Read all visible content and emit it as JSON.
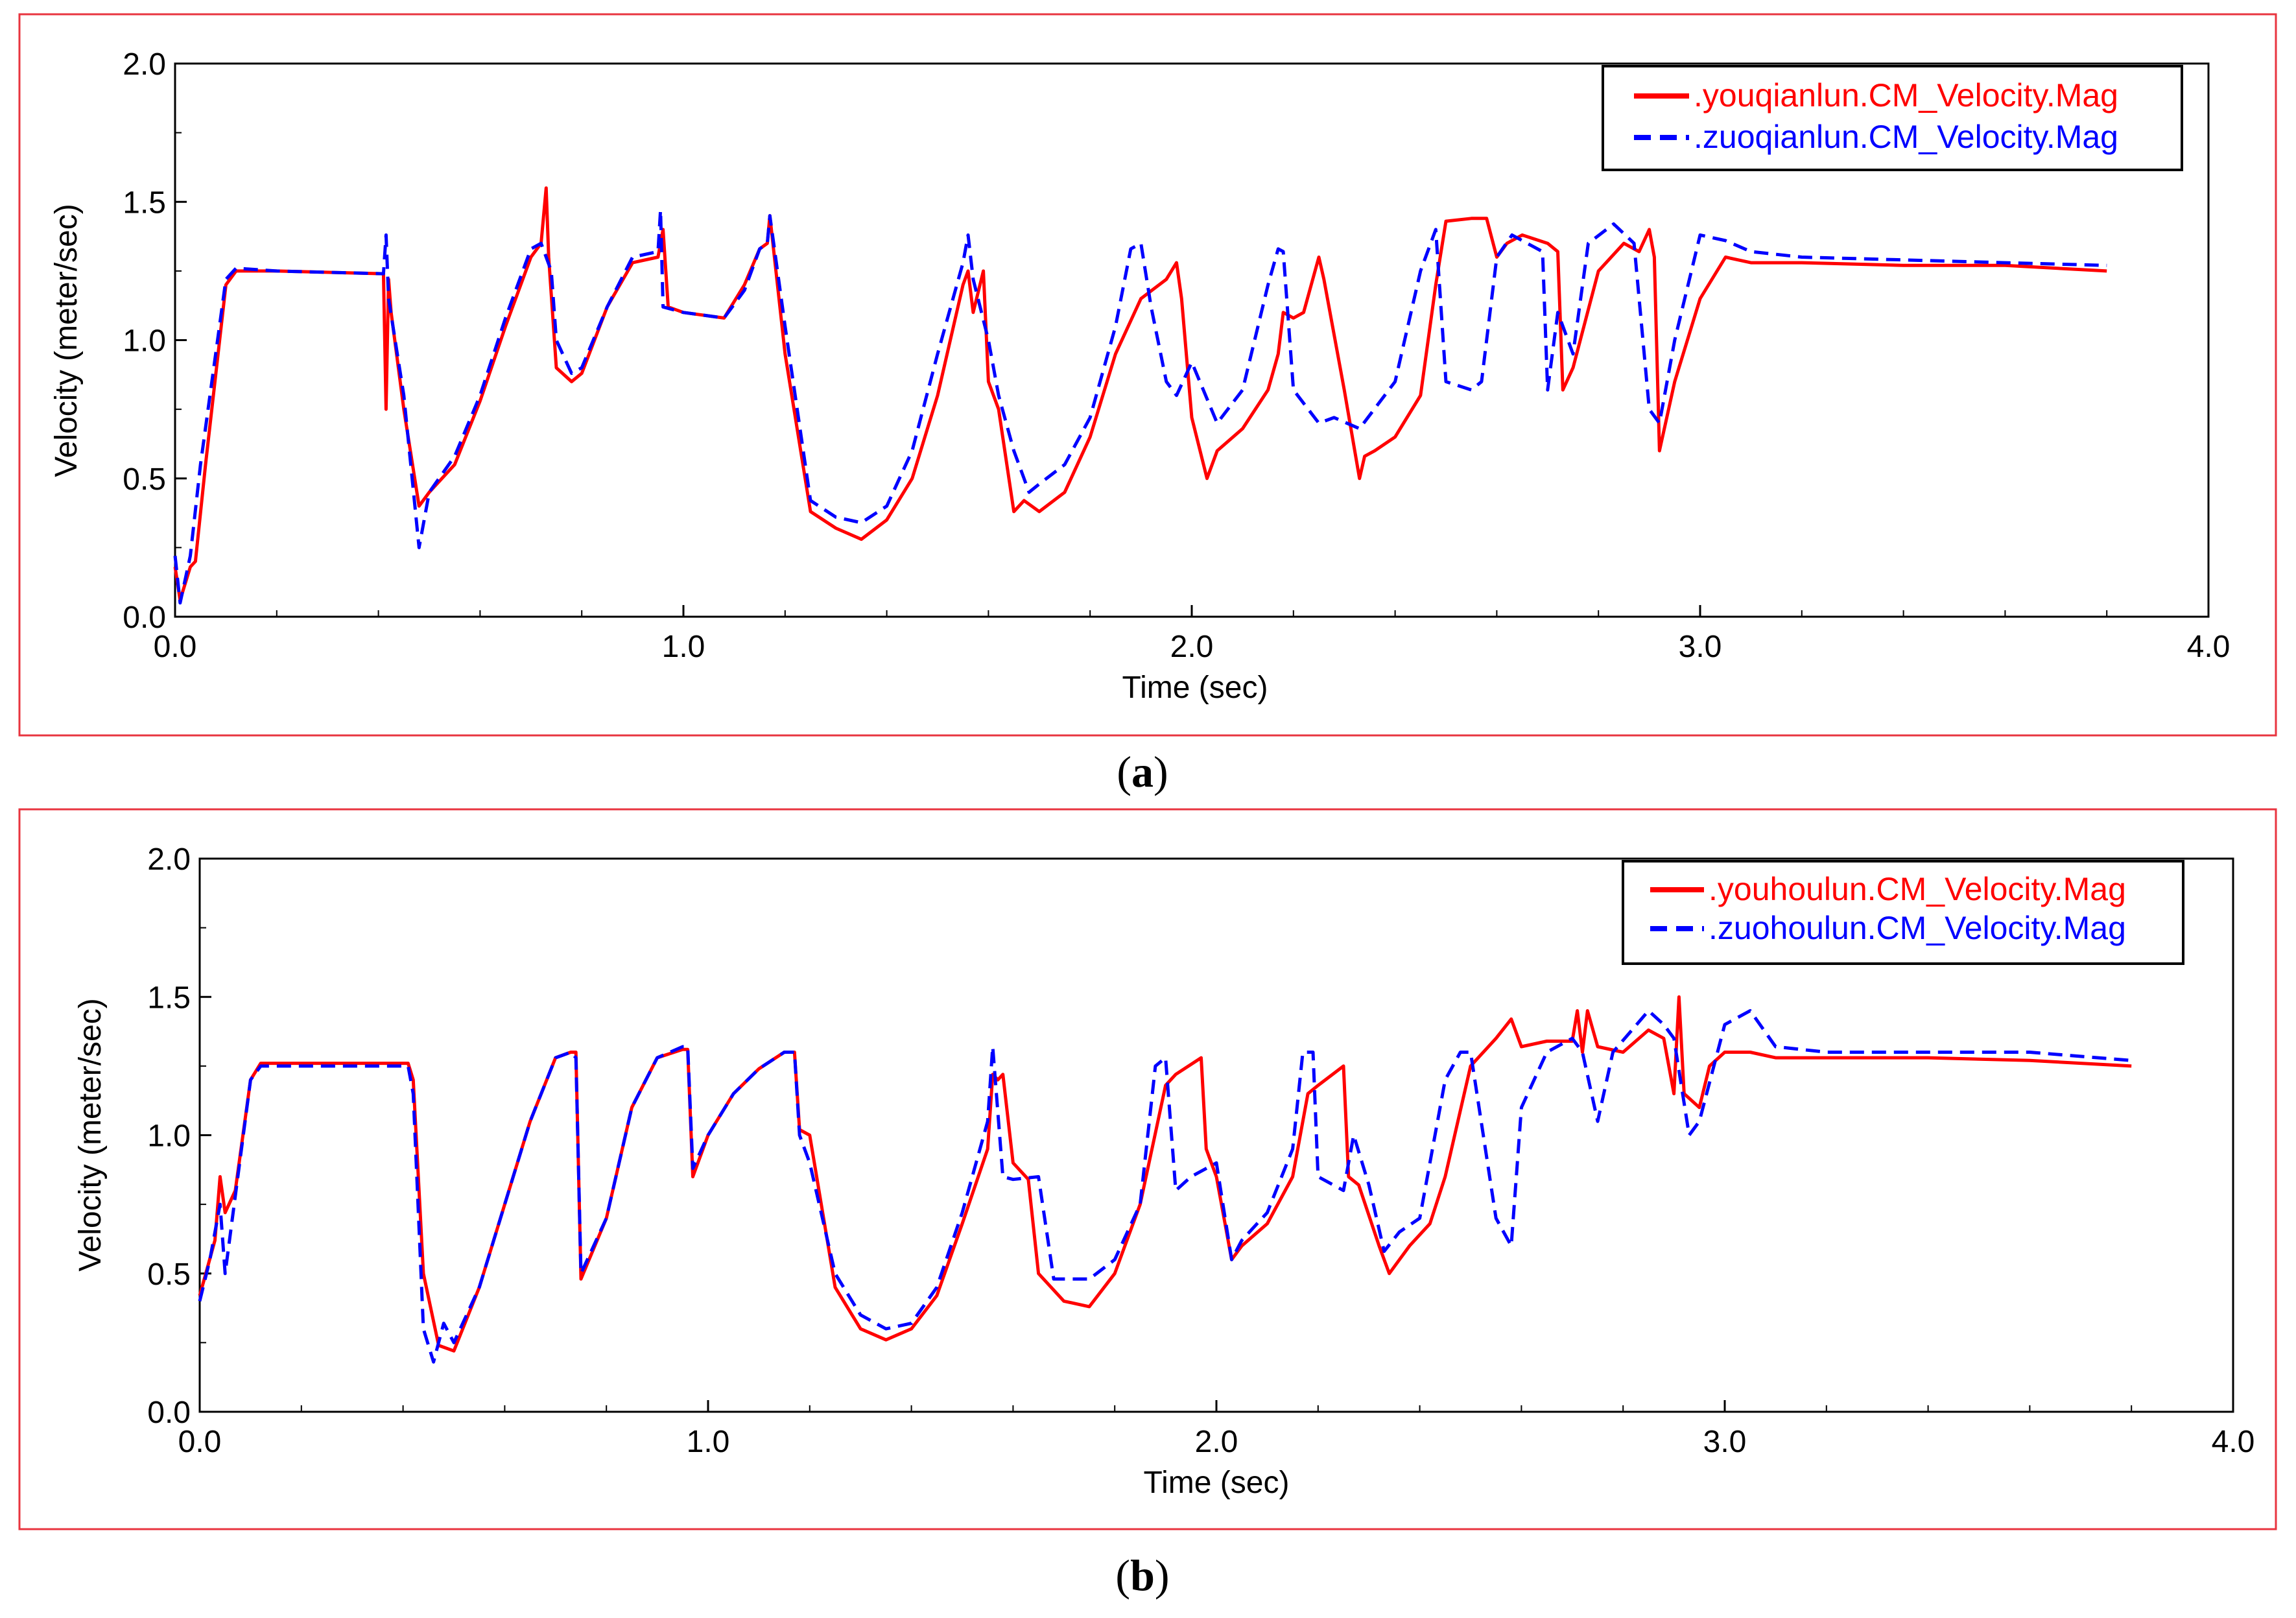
{
  "figure": {
    "captions": [
      "(a)",
      "(b)"
    ],
    "caption_parts": [
      {
        "open": "(",
        "letter": "a",
        "close": ")"
      },
      {
        "open": "(",
        "letter": "b",
        "close": ")"
      }
    ]
  },
  "colors": {
    "frame": "#e8343f",
    "series_solid": "#ff0000",
    "series_dashed": "#0000ff",
    "axis": "#000000",
    "background": "#ffffff"
  },
  "chart_data": [
    {
      "type": "line",
      "panel": "a",
      "xlabel": "Time (sec)",
      "ylabel": "Velocity (meter/sec)",
      "xlim": [
        0,
        4
      ],
      "ylim": [
        0,
        2
      ],
      "xticks": [
        "0.0",
        "1.0",
        "2.0",
        "3.0",
        "4.0"
      ],
      "yticks": [
        "0.0",
        "0.5",
        "1.0",
        "1.5",
        "2.0"
      ],
      "legend_position": "top-right",
      "series": [
        {
          "name": ".youqianlun.CM_Velocity.Mag",
          "style": "solid",
          "color": "#ff0000",
          "x": [
            0,
            0.01,
            0.03,
            0.04,
            0.06,
            0.1,
            0.12,
            0.2,
            0.41,
            0.415,
            0.42,
            0.425,
            0.45,
            0.48,
            0.5,
            0.55,
            0.6,
            0.65,
            0.7,
            0.72,
            0.73,
            0.735,
            0.75,
            0.78,
            0.8,
            0.85,
            0.9,
            0.95,
            0.96,
            0.97,
            1.0,
            1.08,
            1.12,
            1.15,
            1.165,
            1.17,
            1.2,
            1.25,
            1.3,
            1.35,
            1.4,
            1.45,
            1.5,
            1.55,
            1.56,
            1.57,
            1.59,
            1.6,
            1.62,
            1.65,
            1.67,
            1.7,
            1.75,
            1.8,
            1.85,
            1.9,
            1.95,
            1.97,
            1.98,
            2.0,
            2.03,
            2.05,
            2.1,
            2.15,
            2.17,
            2.18,
            2.2,
            2.22,
            2.25,
            2.26,
            2.3,
            2.33,
            2.34,
            2.36,
            2.4,
            2.45,
            2.48,
            2.5,
            2.55,
            2.58,
            2.6,
            2.62,
            2.65,
            2.7,
            2.72,
            2.73,
            2.75,
            2.8,
            2.85,
            2.88,
            2.9,
            2.91,
            2.92,
            2.95,
            3.0,
            3.05,
            3.1,
            3.2,
            3.4,
            3.6,
            3.8
          ],
          "y": [
            0.18,
            0.06,
            0.18,
            0.2,
            0.55,
            1.2,
            1.25,
            1.25,
            1.24,
            0.75,
            1.22,
            1.1,
            0.75,
            0.4,
            0.45,
            0.55,
            0.78,
            1.05,
            1.3,
            1.35,
            1.55,
            1.3,
            0.9,
            0.85,
            0.88,
            1.12,
            1.28,
            1.3,
            1.4,
            1.12,
            1.1,
            1.08,
            1.2,
            1.33,
            1.35,
            1.45,
            0.95,
            0.38,
            0.32,
            0.28,
            0.35,
            0.5,
            0.8,
            1.2,
            1.25,
            1.1,
            1.25,
            0.85,
            0.75,
            0.38,
            0.42,
            0.38,
            0.45,
            0.65,
            0.95,
            1.15,
            1.22,
            1.28,
            1.15,
            0.72,
            0.5,
            0.6,
            0.68,
            0.82,
            0.95,
            1.1,
            1.08,
            1.1,
            1.3,
            1.22,
            0.82,
            0.5,
            0.58,
            0.6,
            0.65,
            0.8,
            1.2,
            1.43,
            1.44,
            1.44,
            1.3,
            1.35,
            1.38,
            1.35,
            1.32,
            0.82,
            0.9,
            1.25,
            1.35,
            1.32,
            1.4,
            1.3,
            0.6,
            0.85,
            1.15,
            1.3,
            1.28,
            1.28,
            1.27,
            1.27,
            1.25
          ]
        },
        {
          "name": ".zuoqianlun.CM_Velocity.Mag",
          "style": "dashed",
          "color": "#0000ff",
          "x": [
            0,
            0.01,
            0.03,
            0.05,
            0.1,
            0.12,
            0.2,
            0.41,
            0.415,
            0.42,
            0.45,
            0.48,
            0.5,
            0.55,
            0.6,
            0.65,
            0.7,
            0.72,
            0.74,
            0.75,
            0.78,
            0.8,
            0.85,
            0.9,
            0.95,
            0.955,
            0.96,
            1.0,
            1.08,
            1.12,
            1.15,
            1.165,
            1.17,
            1.2,
            1.25,
            1.3,
            1.35,
            1.4,
            1.45,
            1.5,
            1.55,
            1.56,
            1.57,
            1.6,
            1.62,
            1.65,
            1.68,
            1.7,
            1.75,
            1.8,
            1.85,
            1.88,
            1.9,
            1.92,
            1.95,
            1.97,
            2.0,
            2.05,
            2.1,
            2.15,
            2.17,
            2.18,
            2.2,
            2.25,
            2.28,
            2.33,
            2.4,
            2.45,
            2.48,
            2.5,
            2.55,
            2.57,
            2.6,
            2.63,
            2.66,
            2.69,
            2.7,
            2.72,
            2.75,
            2.78,
            2.83,
            2.87,
            2.9,
            2.92,
            2.95,
            3.0,
            3.05,
            3.1,
            3.2,
            3.4,
            3.6,
            3.8
          ],
          "y": [
            0.22,
            0.05,
            0.22,
            0.55,
            1.22,
            1.26,
            1.25,
            1.24,
            1.38,
            1.15,
            0.8,
            0.25,
            0.45,
            0.58,
            0.8,
            1.08,
            1.33,
            1.35,
            1.25,
            1.0,
            0.88,
            0.9,
            1.12,
            1.3,
            1.32,
            1.47,
            1.12,
            1.1,
            1.08,
            1.18,
            1.33,
            1.35,
            1.45,
            1.05,
            0.42,
            0.36,
            0.34,
            0.4,
            0.6,
            0.95,
            1.28,
            1.38,
            1.22,
            1.0,
            0.8,
            0.6,
            0.45,
            0.48,
            0.55,
            0.72,
            1.05,
            1.33,
            1.35,
            1.12,
            0.85,
            0.8,
            0.92,
            0.7,
            0.82,
            1.2,
            1.33,
            1.32,
            0.82,
            0.7,
            0.72,
            0.68,
            0.85,
            1.25,
            1.4,
            0.85,
            0.82,
            0.85,
            1.3,
            1.38,
            1.35,
            1.32,
            0.82,
            1.1,
            0.95,
            1.35,
            1.42,
            1.35,
            0.75,
            0.7,
            1.0,
            1.38,
            1.36,
            1.32,
            1.3,
            1.29,
            1.28,
            1.27
          ]
        }
      ]
    },
    {
      "type": "line",
      "panel": "b",
      "xlabel": "Time (sec)",
      "ylabel": "Velocity (meter/sec)",
      "xlim": [
        0,
        4
      ],
      "ylim": [
        0,
        2
      ],
      "xticks": [
        "0.0",
        "1.0",
        "2.0",
        "3.0",
        "4.0"
      ],
      "yticks": [
        "0.0",
        "0.5",
        "1.0",
        "1.5",
        "2.0"
      ],
      "legend_position": "top-right",
      "series": [
        {
          "name": ".youhoulun.CM_Velocity.Mag",
          "style": "solid",
          "color": "#ff0000",
          "x": [
            0,
            0.03,
            0.04,
            0.05,
            0.07,
            0.1,
            0.12,
            0.2,
            0.41,
            0.42,
            0.44,
            0.47,
            0.5,
            0.55,
            0.6,
            0.65,
            0.7,
            0.73,
            0.74,
            0.75,
            0.8,
            0.85,
            0.9,
            0.95,
            0.96,
            0.97,
            1.0,
            1.05,
            1.1,
            1.15,
            1.17,
            1.18,
            1.2,
            1.25,
            1.3,
            1.35,
            1.4,
            1.45,
            1.5,
            1.55,
            1.56,
            1.57,
            1.58,
            1.6,
            1.63,
            1.65,
            1.7,
            1.75,
            1.8,
            1.85,
            1.9,
            1.92,
            1.97,
            1.98,
            2.0,
            2.03,
            2.05,
            2.1,
            2.15,
            2.18,
            2.2,
            2.25,
            2.26,
            2.28,
            2.32,
            2.34,
            2.38,
            2.42,
            2.45,
            2.5,
            2.55,
            2.58,
            2.6,
            2.65,
            2.7,
            2.71,
            2.72,
            2.73,
            2.75,
            2.8,
            2.85,
            2.88,
            2.9,
            2.91,
            2.92,
            2.95,
            2.97,
            3.0,
            3.05,
            3.1,
            3.2,
            3.4,
            3.6,
            3.8
          ],
          "y": [
            0.42,
            0.62,
            0.85,
            0.72,
            0.8,
            1.2,
            1.26,
            1.26,
            1.26,
            1.2,
            0.5,
            0.24,
            0.22,
            0.45,
            0.75,
            1.05,
            1.28,
            1.3,
            1.3,
            0.48,
            0.7,
            1.1,
            1.28,
            1.31,
            1.31,
            0.85,
            1.0,
            1.15,
            1.24,
            1.3,
            1.3,
            1.02,
            1.0,
            0.45,
            0.3,
            0.26,
            0.3,
            0.42,
            0.68,
            0.95,
            1.22,
            1.2,
            1.22,
            0.9,
            0.84,
            0.5,
            0.4,
            0.38,
            0.5,
            0.75,
            1.18,
            1.22,
            1.28,
            0.95,
            0.85,
            0.55,
            0.6,
            0.68,
            0.85,
            1.15,
            1.18,
            1.25,
            0.85,
            0.82,
            0.6,
            0.5,
            0.6,
            0.68,
            0.85,
            1.25,
            1.35,
            1.42,
            1.32,
            1.34,
            1.34,
            1.45,
            1.3,
            1.45,
            1.32,
            1.3,
            1.38,
            1.35,
            1.15,
            1.5,
            1.15,
            1.1,
            1.25,
            1.3,
            1.3,
            1.28,
            1.28,
            1.28,
            1.27,
            1.25
          ]
        },
        {
          "name": ".zuohoulun.CM_Velocity.Mag",
          "style": "dashed",
          "color": "#0000ff",
          "x": [
            0,
            0.02,
            0.04,
            0.05,
            0.1,
            0.12,
            0.2,
            0.41,
            0.42,
            0.44,
            0.46,
            0.48,
            0.5,
            0.55,
            0.6,
            0.65,
            0.7,
            0.73,
            0.74,
            0.75,
            0.8,
            0.85,
            0.9,
            0.95,
            0.96,
            0.97,
            1.0,
            1.05,
            1.1,
            1.15,
            1.17,
            1.18,
            1.2,
            1.25,
            1.3,
            1.35,
            1.4,
            1.45,
            1.5,
            1.55,
            1.56,
            1.58,
            1.6,
            1.65,
            1.68,
            1.75,
            1.8,
            1.85,
            1.88,
            1.9,
            1.92,
            1.95,
            2.0,
            2.03,
            2.05,
            2.1,
            2.15,
            2.17,
            2.19,
            2.2,
            2.25,
            2.27,
            2.3,
            2.33,
            2.36,
            2.4,
            2.45,
            2.48,
            2.5,
            2.55,
            2.58,
            2.6,
            2.65,
            2.7,
            2.72,
            2.75,
            2.78,
            2.85,
            2.88,
            2.9,
            2.93,
            2.95,
            3.0,
            3.05,
            3.1,
            3.2,
            3.4,
            3.6,
            3.8
          ],
          "y": [
            0.4,
            0.55,
            0.75,
            0.5,
            1.2,
            1.25,
            1.25,
            1.25,
            1.15,
            0.3,
            0.18,
            0.32,
            0.25,
            0.45,
            0.75,
            1.05,
            1.28,
            1.3,
            1.28,
            0.5,
            0.7,
            1.1,
            1.28,
            1.32,
            1.32,
            0.88,
            1.0,
            1.15,
            1.24,
            1.3,
            1.3,
            1.0,
            0.9,
            0.5,
            0.35,
            0.3,
            0.32,
            0.45,
            0.72,
            1.05,
            1.32,
            0.85,
            0.84,
            0.85,
            0.48,
            0.48,
            0.55,
            0.75,
            1.25,
            1.28,
            0.8,
            0.85,
            0.9,
            0.55,
            0.62,
            0.72,
            0.95,
            1.3,
            1.3,
            0.85,
            0.8,
            1.0,
            0.82,
            0.58,
            0.65,
            0.7,
            1.2,
            1.3,
            1.3,
            0.7,
            0.6,
            1.1,
            1.3,
            1.35,
            1.3,
            1.05,
            1.3,
            1.45,
            1.4,
            1.35,
            1.0,
            1.05,
            1.4,
            1.45,
            1.32,
            1.3,
            1.3,
            1.3,
            1.27
          ]
        }
      ]
    }
  ]
}
